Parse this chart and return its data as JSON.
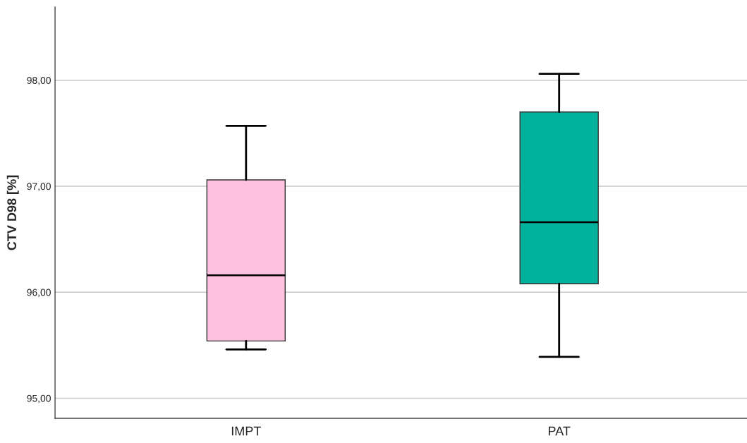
{
  "chart_data": {
    "type": "box",
    "ylabel": "CTV D98 [%]",
    "categories": [
      "IMPT",
      "PAT"
    ],
    "boxes": [
      {
        "low": 95.46,
        "q1": 95.54,
        "median": 96.16,
        "q3": 97.06,
        "high": 97.57
      },
      {
        "low": 95.39,
        "q1": 96.08,
        "median": 96.66,
        "q3": 97.7,
        "high": 98.06
      }
    ],
    "colors": [
      "#fec1e0",
      "#00b29c"
    ],
    "ylim": [
      94.81,
      98.69
    ],
    "yticks": [
      {
        "value": 95,
        "label": "95,00"
      },
      {
        "value": 96,
        "label": "96,00"
      },
      {
        "value": 97,
        "label": "97,00"
      },
      {
        "value": 98,
        "label": "98,00"
      }
    ],
    "grid": "y"
  }
}
